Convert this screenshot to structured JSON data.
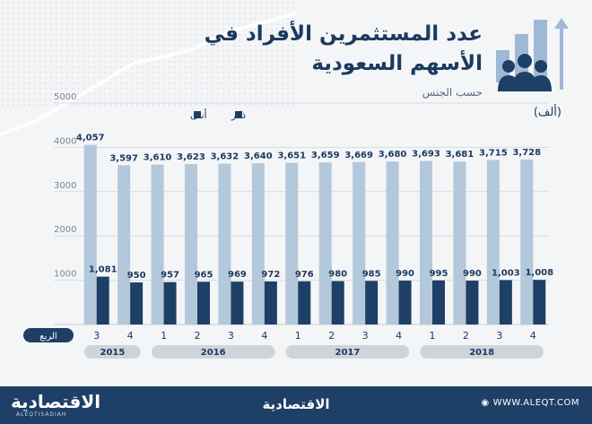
{
  "title": "عدد المستثمرين الأفراد في الأسهم السعودية",
  "subtitle": "حسب الجنس",
  "unit": "(ألف)",
  "footer": {
    "logo": "الاقتصادية",
    "logo_sub": "ALEQTISADIAH",
    "center": "الاقتصادية",
    "url": "WWW.ALEQT.COM"
  },
  "colors": {
    "male": "#b3c8da",
    "female": "#1e3f66",
    "accent": "#8aaed0"
  },
  "chart_data": {
    "type": "bar",
    "categories": [
      "3",
      "4",
      "1",
      "2",
      "3",
      "4",
      "1",
      "2",
      "3",
      "4",
      "1",
      "2",
      "3",
      "4"
    ],
    "years": [
      {
        "label": "2015",
        "span": 2
      },
      {
        "label": "2016",
        "span": 4
      },
      {
        "label": "2017",
        "span": 4
      },
      {
        "label": "2018",
        "span": 4
      }
    ],
    "x_axis_title": "الربع",
    "series": [
      {
        "name": "ذكر",
        "values": [
          4057,
          3597,
          3610,
          3623,
          3632,
          3640,
          3651,
          3659,
          3669,
          3680,
          3693,
          3681,
          3715,
          3728
        ],
        "labels": [
          "4,057",
          "3,597",
          "3,610",
          "3,623",
          "3,632",
          "3,640",
          "3,651",
          "3,659",
          "3,669",
          "3,680",
          "3,693",
          "3,681",
          "3,715",
          "3,728"
        ]
      },
      {
        "name": "أنثى",
        "values": [
          1081,
          950,
          957,
          965,
          969,
          972,
          976,
          980,
          985,
          990,
          995,
          990,
          1003,
          1008
        ],
        "labels": [
          "1,081",
          "950",
          "957",
          "965",
          "969",
          "972",
          "976",
          "980",
          "985",
          "990",
          "995",
          "990",
          "1,003",
          "1,008"
        ]
      }
    ],
    "y_ticks": [
      "5000",
      "4000",
      "3000",
      "2000",
      "1000"
    ],
    "ylim": [
      0,
      5000
    ],
    "grid": true,
    "legend_position": "top-left"
  }
}
